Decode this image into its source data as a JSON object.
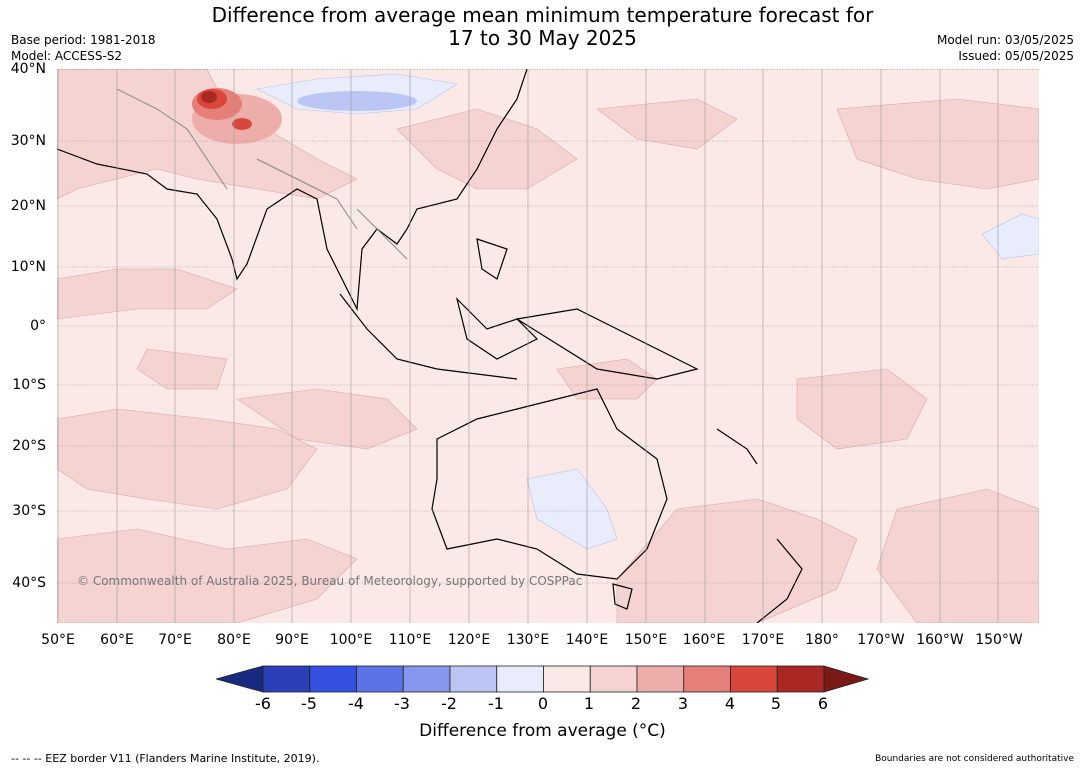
{
  "header": {
    "title": "Difference from average mean minimum temperature forecast for\n17 to 30 May 2025",
    "base_period": "Base period: 1981-2018",
    "model": "Model: ACCESS-S2",
    "model_run": "Model run: 03/05/2025",
    "issued": "Issued: 05/05/2025"
  },
  "map": {
    "lat_labels": [
      "40°N",
      "30°N",
      "20°N",
      "10°N",
      "0°",
      "10°S",
      "20°S",
      "30°S",
      "40°S"
    ],
    "lon_labels": [
      "50°E",
      "60°E",
      "70°E",
      "80°E",
      "90°E",
      "100°E",
      "110°E",
      "120°E",
      "130°E",
      "140°E",
      "150°E",
      "160°E",
      "170°E",
      "180°",
      "170°W",
      "160°W",
      "150°W"
    ],
    "copyright": "© Commonwealth of Australia 2025, Bureau of Meteorology, supported by COSPPac"
  },
  "colorbar": {
    "ticks": [
      "-6",
      "-5",
      "-4",
      "-3",
      "-2",
      "-1",
      "0",
      "1",
      "2",
      "3",
      "4",
      "5",
      "6"
    ],
    "colors": [
      "#1a2a80",
      "#2a3fb8",
      "#3350e0",
      "#5b73e6",
      "#8797ee",
      "#bcc6f5",
      "#e8ecfb",
      "#fbe9e8",
      "#f4d3d1",
      "#edaeab",
      "#e57f78",
      "#d9473c",
      "#aa2822",
      "#7a1a16"
    ],
    "label": "Difference from average (°C)"
  },
  "footer": {
    "legend_note": "--  --  -- EEZ border V11 (Flanders Marine Institute, 2019).",
    "boundaries_note": "Boundaries are not considered authoritative"
  }
}
